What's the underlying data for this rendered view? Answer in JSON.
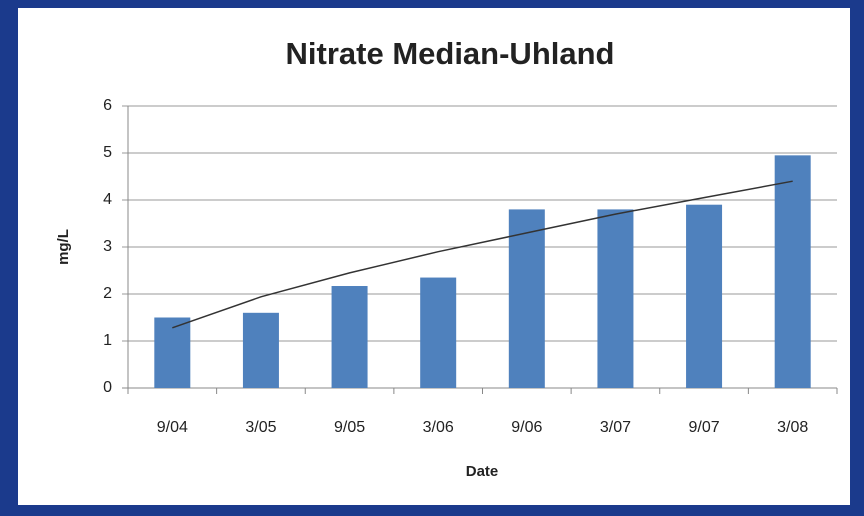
{
  "chart_data": {
    "type": "bar",
    "title": "Nitrate Median-Uhland",
    "x_label": "Date",
    "y_label": "mg/L",
    "categories": [
      "9/04",
      "3/05",
      "9/05",
      "3/06",
      "9/06",
      "3/07",
      "9/07",
      "3/08"
    ],
    "values": [
      1.5,
      1.6,
      2.17,
      2.35,
      3.8,
      3.8,
      3.9,
      4.95
    ],
    "color": "#4f81bd",
    "trendline": {
      "color": "#333333",
      "values": [
        1.28,
        1.94,
        2.45,
        2.9,
        3.3,
        3.7,
        4.05,
        4.4
      ]
    },
    "ylim": [
      0,
      6
    ],
    "yticks": [
      0,
      1,
      2,
      3,
      4,
      5,
      6
    ],
    "grid": true
  }
}
